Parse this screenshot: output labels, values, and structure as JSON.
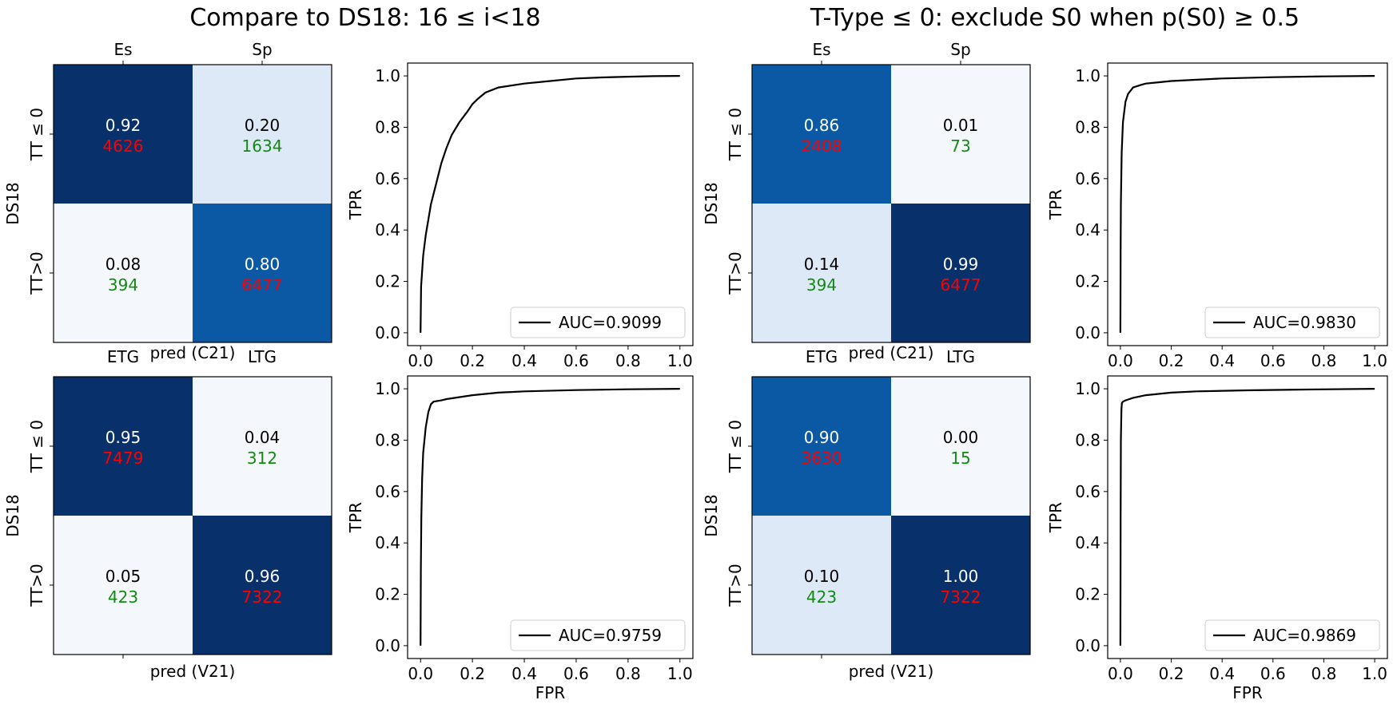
{
  "titles": {
    "left": "Compare to DS18: 16 ≤ i<18",
    "right": "T-Type ≤ 0: exclude S0 when p(S0) ≥ 0.5"
  },
  "colors": {
    "dark": "#08306b",
    "mid": "#0b58a4",
    "light": "#dde9f6",
    "lightest": "#f4f8fd",
    "count_red": "#ff0000",
    "count_green": "#128a12",
    "curve": "#000000"
  },
  "chart_data": [
    {
      "type": "heatmap",
      "name": "confusion-top-left",
      "top_labels": [
        "Es",
        "Sp"
      ],
      "bottom_labels": [
        "ETG",
        "LTG"
      ],
      "xlabel": "pred (C21)",
      "row_labels": [
        "TT ≤ 0",
        "TT>0"
      ],
      "ylabel": "DS18",
      "cells": [
        [
          {
            "frac": "0.92",
            "count": "4626",
            "color": "count_red",
            "fill": "dark"
          },
          {
            "frac": "0.20",
            "count": "1634",
            "color": "count_green",
            "fill": "light"
          }
        ],
        [
          {
            "frac": "0.08",
            "count": "394",
            "color": "count_green",
            "fill": "lightest"
          },
          {
            "frac": "0.80",
            "count": "6477",
            "color": "count_red",
            "fill": "mid"
          }
        ]
      ]
    },
    {
      "type": "line",
      "name": "roc-top-left",
      "legend": "AUC=0.9099",
      "xlabel": "",
      "ylabel": "TPR",
      "xlim": [
        0,
        1
      ],
      "ylim": [
        0,
        1
      ],
      "x": [
        0,
        0.002,
        0.01,
        0.02,
        0.04,
        0.06,
        0.08,
        0.1,
        0.12,
        0.15,
        0.18,
        0.2,
        0.22,
        0.25,
        0.3,
        0.4,
        0.5,
        0.6,
        0.7,
        0.8,
        0.9,
        1.0
      ],
      "y": [
        0,
        0.18,
        0.3,
        0.38,
        0.5,
        0.58,
        0.66,
        0.72,
        0.77,
        0.82,
        0.86,
        0.89,
        0.91,
        0.935,
        0.955,
        0.97,
        0.98,
        0.99,
        0.994,
        0.997,
        0.999,
        1.0
      ]
    },
    {
      "type": "heatmap",
      "name": "confusion-top-right",
      "top_labels": [
        "Es",
        "Sp"
      ],
      "bottom_labels": [
        "ETG",
        "LTG"
      ],
      "xlabel": "pred (C21)",
      "row_labels": [
        "TT ≤ 0",
        "TT>0"
      ],
      "ylabel": "DS18",
      "cells": [
        [
          {
            "frac": "0.86",
            "count": "2408",
            "color": "count_red",
            "fill": "mid"
          },
          {
            "frac": "0.01",
            "count": "73",
            "color": "count_green",
            "fill": "lightest"
          }
        ],
        [
          {
            "frac": "0.14",
            "count": "394",
            "color": "count_green",
            "fill": "light"
          },
          {
            "frac": "0.99",
            "count": "6477",
            "color": "count_red",
            "fill": "dark"
          }
        ]
      ]
    },
    {
      "type": "line",
      "name": "roc-top-right",
      "legend": "AUC=0.9830",
      "xlabel": "",
      "ylabel": "TPR",
      "xlim": [
        0,
        1
      ],
      "ylim": [
        0,
        1
      ],
      "x": [
        0,
        0.001,
        0.002,
        0.005,
        0.01,
        0.02,
        0.03,
        0.05,
        0.08,
        0.1,
        0.15,
        0.2,
        0.3,
        0.4,
        0.6,
        0.8,
        1.0
      ],
      "y": [
        0,
        0.32,
        0.5,
        0.7,
        0.82,
        0.9,
        0.93,
        0.955,
        0.965,
        0.97,
        0.975,
        0.98,
        0.985,
        0.99,
        0.995,
        0.998,
        1.0
      ]
    },
    {
      "type": "heatmap",
      "name": "confusion-bottom-left",
      "top_labels": [],
      "bottom_labels": [],
      "xlabel": "pred (V21)",
      "row_labels": [
        "TT ≤ 0",
        "TT>0"
      ],
      "ylabel": "DS18",
      "cells": [
        [
          {
            "frac": "0.95",
            "count": "7479",
            "color": "count_red",
            "fill": "dark"
          },
          {
            "frac": "0.04",
            "count": "312",
            "color": "count_green",
            "fill": "lightest"
          }
        ],
        [
          {
            "frac": "0.05",
            "count": "423",
            "color": "count_green",
            "fill": "lightest"
          },
          {
            "frac": "0.96",
            "count": "7322",
            "color": "count_red",
            "fill": "dark"
          }
        ]
      ]
    },
    {
      "type": "line",
      "name": "roc-bottom-left",
      "legend": "AUC=0.9759",
      "xlabel": "FPR",
      "ylabel": "TPR",
      "xlim": [
        0,
        1
      ],
      "ylim": [
        0,
        1
      ],
      "x": [
        0,
        0.001,
        0.003,
        0.006,
        0.01,
        0.02,
        0.03,
        0.04,
        0.05,
        0.08,
        0.1,
        0.2,
        0.3,
        0.4,
        0.6,
        0.8,
        1.0
      ],
      "y": [
        0,
        0.3,
        0.5,
        0.65,
        0.75,
        0.85,
        0.91,
        0.94,
        0.95,
        0.955,
        0.96,
        0.975,
        0.985,
        0.99,
        0.995,
        0.998,
        1.0
      ]
    },
    {
      "type": "heatmap",
      "name": "confusion-bottom-right",
      "top_labels": [],
      "bottom_labels": [],
      "xlabel": "pred (V21)",
      "row_labels": [
        "TT ≤ 0",
        "TT>0"
      ],
      "ylabel": "DS18",
      "cells": [
        [
          {
            "frac": "0.90",
            "count": "3630",
            "color": "count_red",
            "fill": "mid"
          },
          {
            "frac": "0.00",
            "count": "15",
            "color": "count_green",
            "fill": "lightest"
          }
        ],
        [
          {
            "frac": "0.10",
            "count": "423",
            "color": "count_green",
            "fill": "light"
          },
          {
            "frac": "1.00",
            "count": "7322",
            "color": "count_red",
            "fill": "dark"
          }
        ]
      ]
    },
    {
      "type": "line",
      "name": "roc-bottom-right",
      "legend": "AUC=0.9869",
      "xlabel": "FPR",
      "ylabel": "TPR",
      "xlim": [
        0,
        1
      ],
      "ylim": [
        0,
        1
      ],
      "x": [
        0,
        0.001,
        0.002,
        0.004,
        0.006,
        0.01,
        0.02,
        0.05,
        0.1,
        0.2,
        0.3,
        0.5,
        0.7,
        1.0
      ],
      "y": [
        0,
        0.5,
        0.8,
        0.92,
        0.945,
        0.95,
        0.955,
        0.965,
        0.975,
        0.985,
        0.99,
        0.994,
        0.997,
        1.0
      ]
    }
  ],
  "roc_ticks": [
    "0.0",
    "0.2",
    "0.4",
    "0.6",
    "0.8",
    "1.0"
  ]
}
